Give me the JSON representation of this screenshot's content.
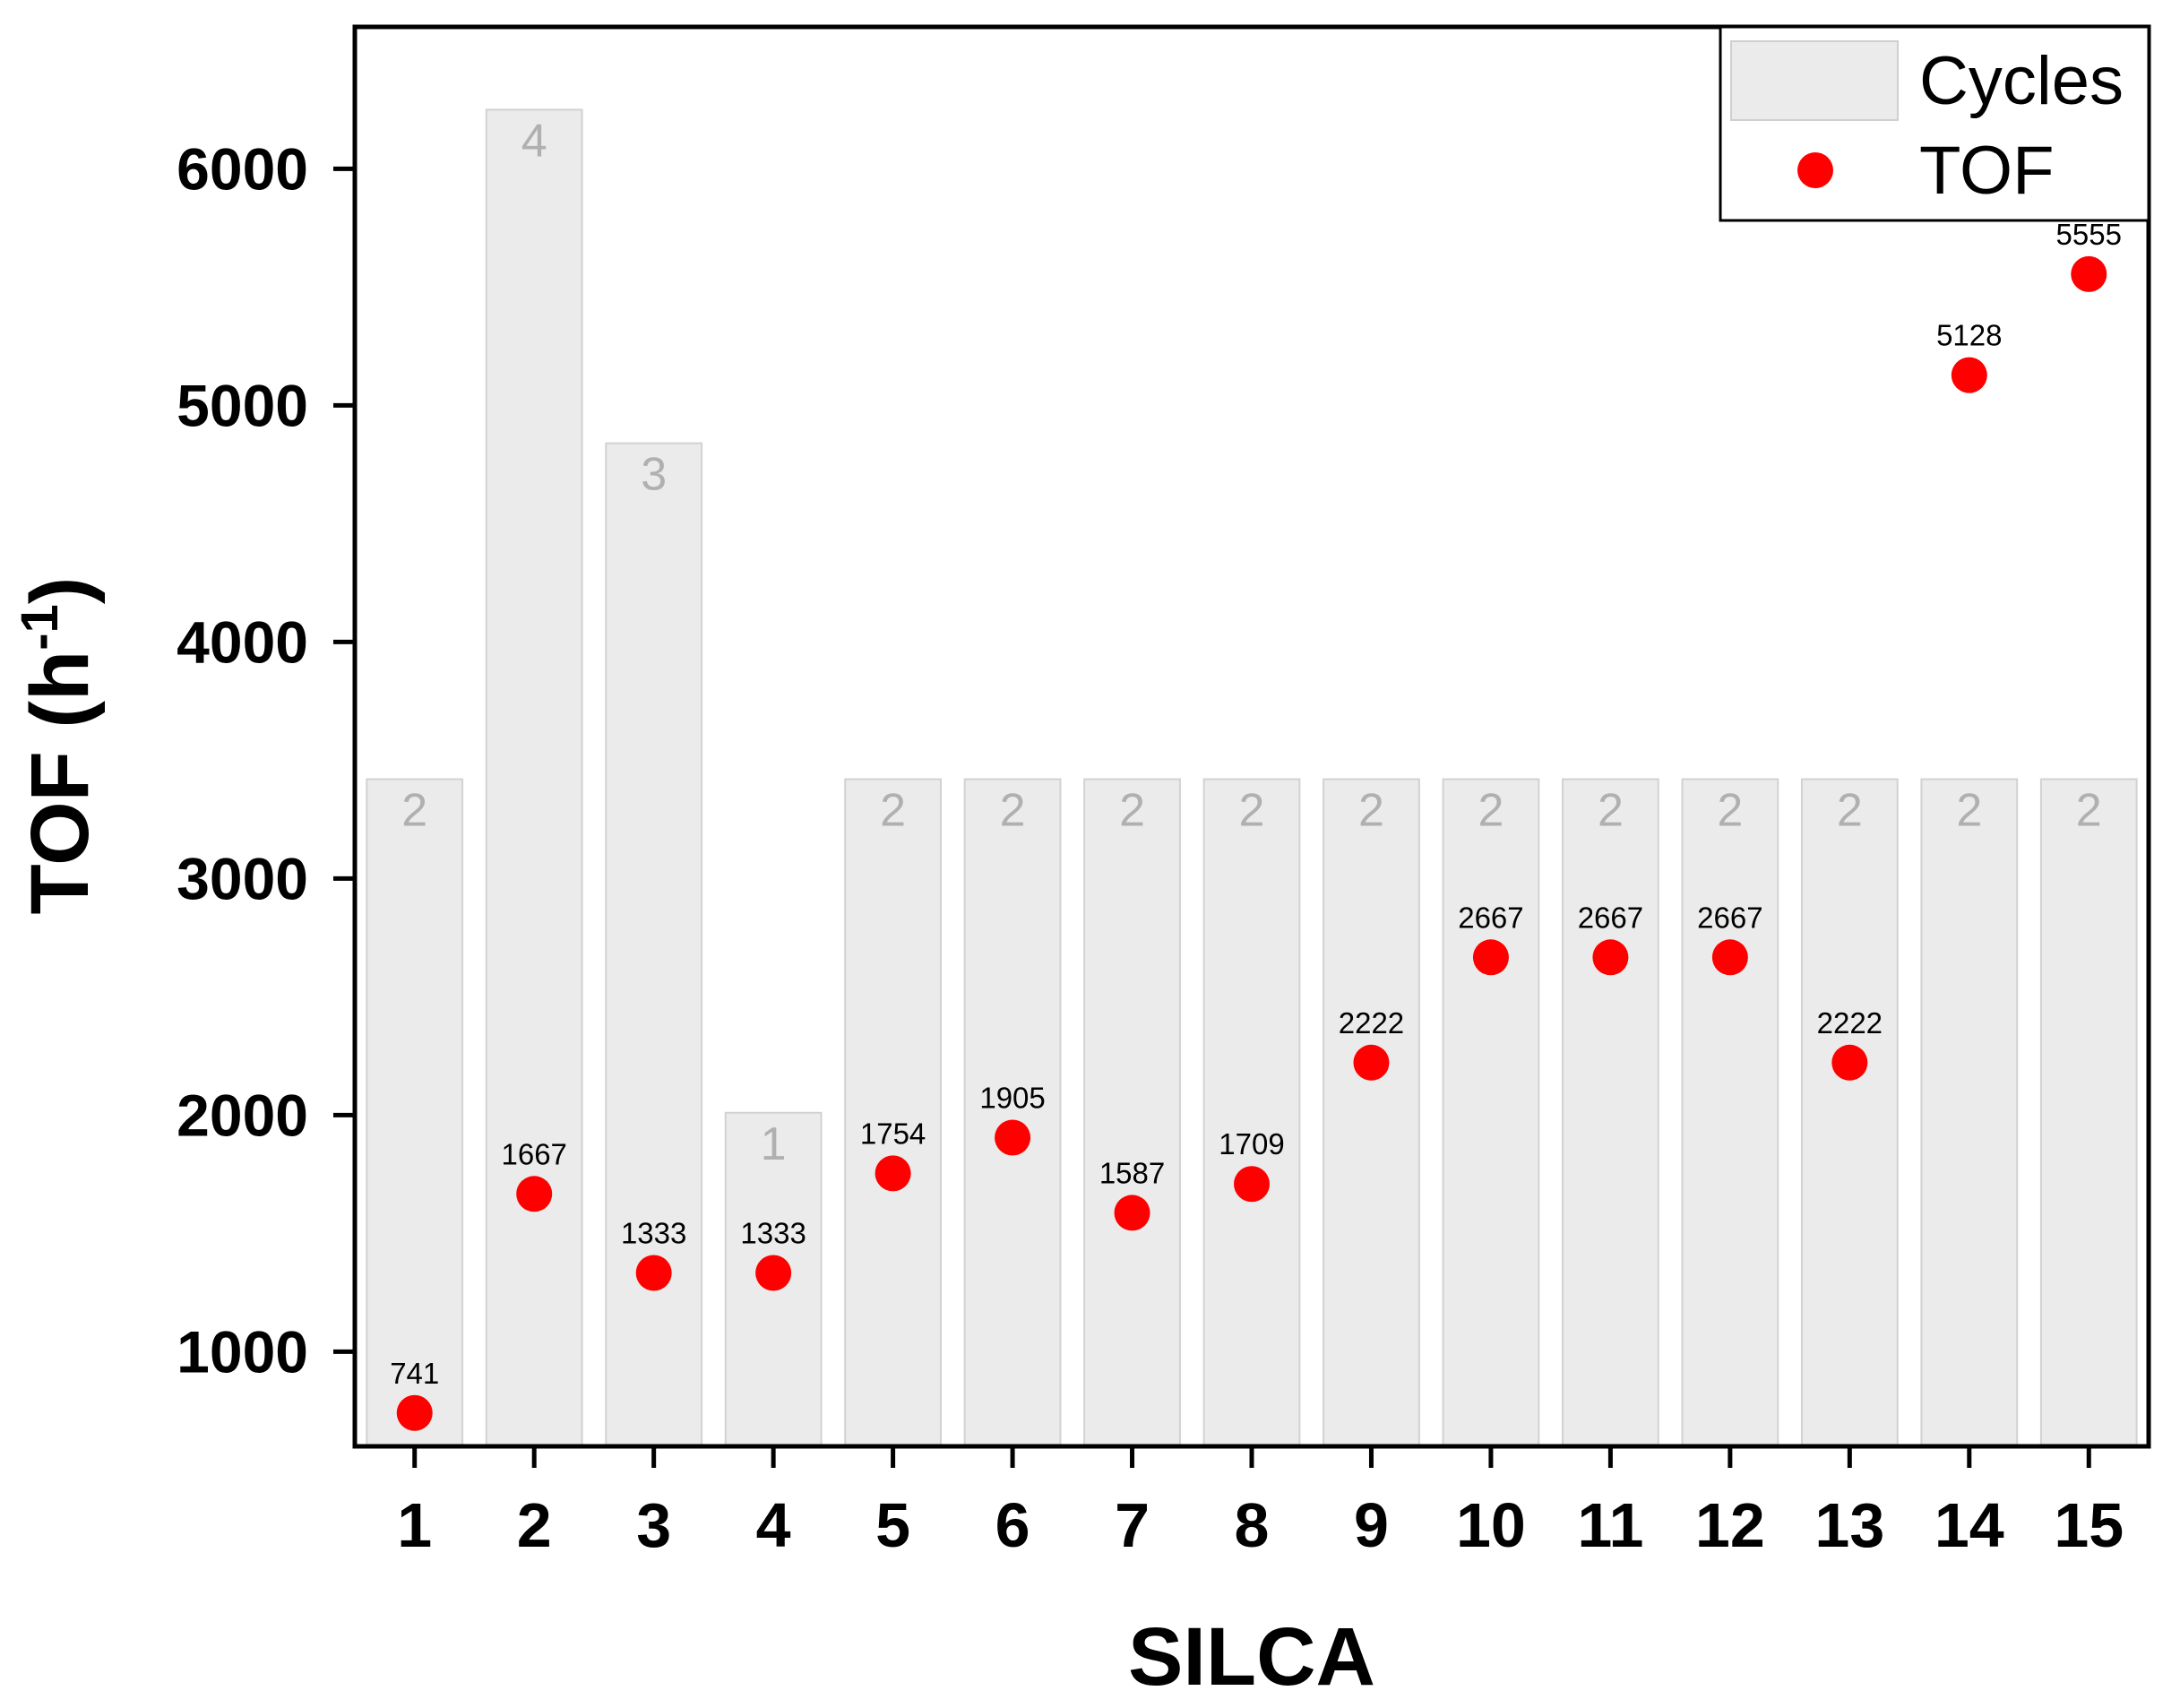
{
  "chart_data": {
    "type": "bar",
    "title": "",
    "xlabel": "SILCA",
    "ylabel": "TOF (h",
    "ylabel_sup": "-1",
    "ylabel_close": ")",
    "ylim": [
      600,
      6600
    ],
    "yticks": [
      1000,
      2000,
      3000,
      4000,
      5000,
      6000
    ],
    "categories": [
      "1",
      "2",
      "3",
      "4",
      "5",
      "6",
      "7",
      "8",
      "9",
      "10",
      "11",
      "12",
      "13",
      "14",
      "15"
    ],
    "series": [
      {
        "name": "Cycles",
        "kind": "bar",
        "color": "#ebebeb",
        "values": [
          2,
          4,
          3,
          1,
          2,
          2,
          2,
          2,
          2,
          2,
          2,
          2,
          2,
          2,
          2
        ],
        "bar_tops_on_tof_axis": [
          3420,
          6250,
          4840,
          2010,
          3420,
          3420,
          3420,
          3420,
          3420,
          3420,
          3420,
          3420,
          3420,
          3420,
          3420
        ]
      },
      {
        "name": "TOF",
        "kind": "scatter",
        "color": "#ff0000",
        "values": [
          741,
          1667,
          1333,
          1333,
          1754,
          1905,
          1587,
          1709,
          2222,
          2667,
          2667,
          2667,
          2222,
          5128,
          5555
        ]
      }
    ],
    "legend": {
      "position": "top-right",
      "entries": [
        "Cycles",
        "TOF"
      ]
    },
    "grid": false
  }
}
